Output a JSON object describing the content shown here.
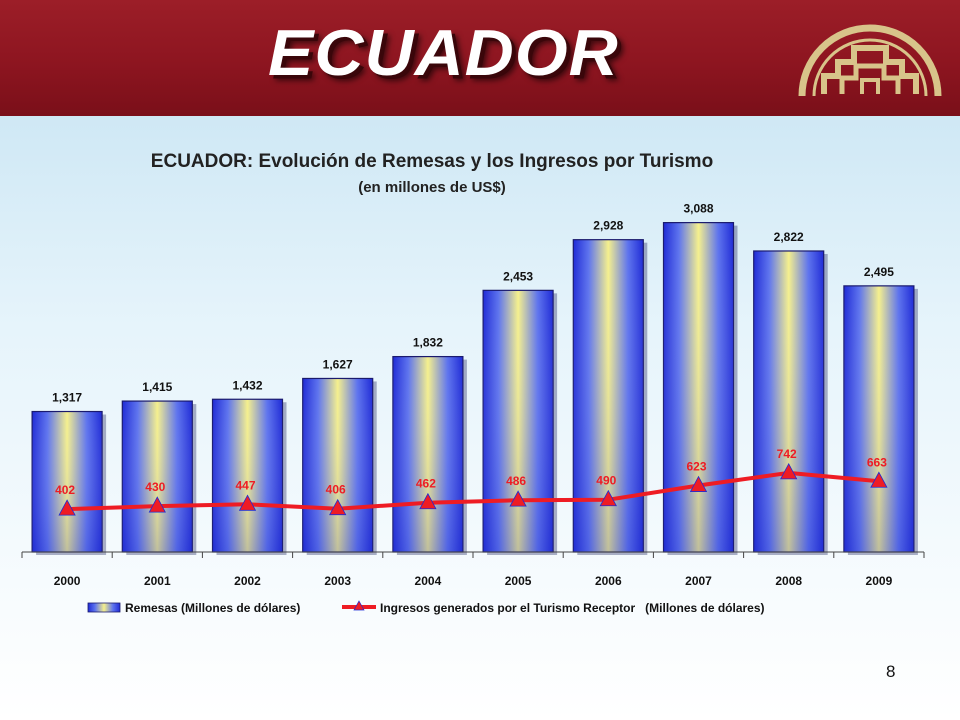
{
  "slide": {
    "title": "ECUADOR",
    "page_number": "8"
  },
  "colors": {
    "header": "#8d1520",
    "logo": "#d8c48a",
    "bar_center": "#f5f08c",
    "bar_edge": "#1f2bd6",
    "line": "#ee1c24"
  },
  "chart_data": {
    "type": "bar",
    "title": "ECUADOR: Evolución de Remesas y los Ingresos por Turismo",
    "subtitle": "(en millones de US$)",
    "categories": [
      "2000",
      "2001",
      "2002",
      "2003",
      "2004",
      "2005",
      "2006",
      "2007",
      "2008",
      "2009"
    ],
    "series": [
      {
        "name": "Remesas (Millones de dólares)",
        "type": "bar",
        "values": [
          1317,
          1415,
          1432,
          1627,
          1832,
          2453,
          2928,
          3088,
          2822,
          2495
        ],
        "labels": [
          "1,317",
          "1,415",
          "1,432",
          "1,627",
          "1,832",
          "2,453",
          "2,928",
          "3,088",
          "2,822",
          "2,495"
        ]
      },
      {
        "name": "Ingresos generados por el Turismo Receptor   (Millones de dólares)",
        "type": "line",
        "values": [
          402,
          430,
          447,
          406,
          462,
          486,
          490,
          623,
          742,
          663
        ],
        "labels": [
          "402",
          "430",
          "447",
          "406",
          "462",
          "486",
          "490",
          "623",
          "742",
          "663"
        ]
      }
    ],
    "ylim": [
      0,
      3300
    ],
    "grid": false,
    "legend": "bottom"
  }
}
